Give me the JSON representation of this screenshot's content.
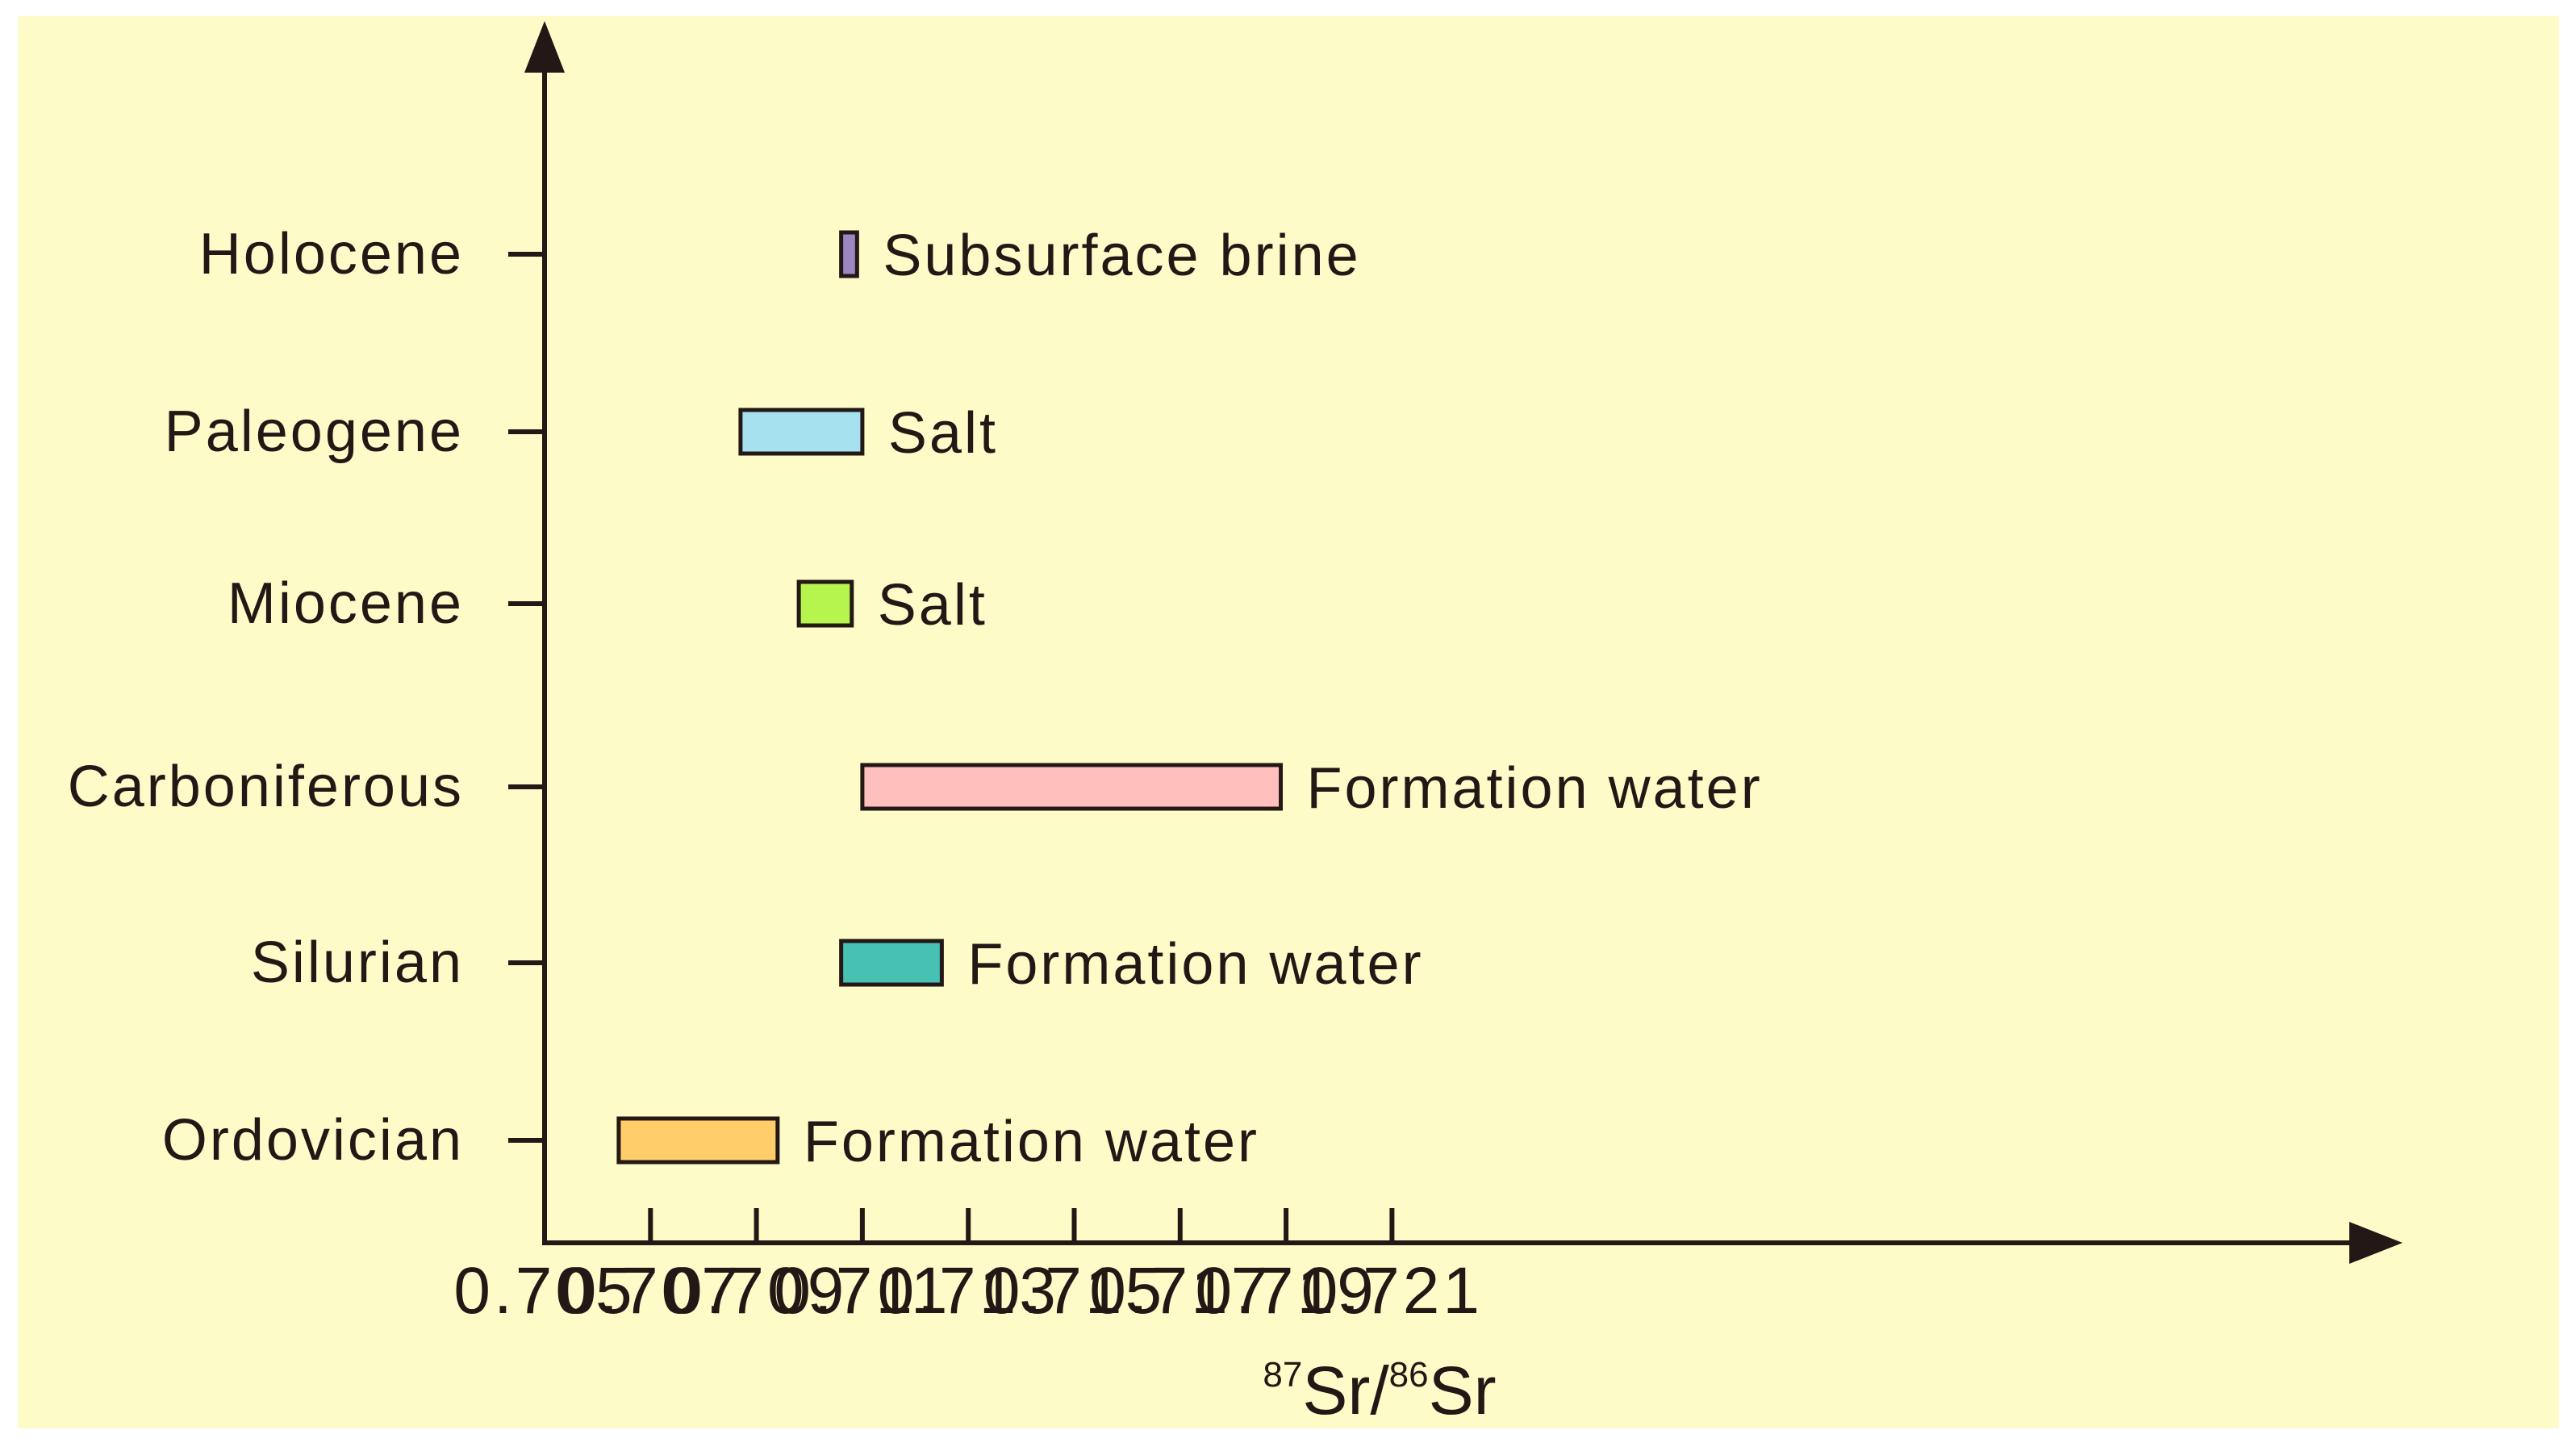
{
  "colors": {
    "background": "#fdfbc8",
    "axis": "#231815",
    "bar_stroke": "#231815"
  },
  "chart_data": {
    "type": "bar",
    "orientation": "horizontal-range",
    "title": "",
    "xlabel": {
      "prefix_sup": "87",
      "main1": "Sr/",
      "mid_sup": "86",
      "main2": "Sr"
    },
    "ylabel": "",
    "xlim": [
      0.705,
      0.7225
    ],
    "xticks": [
      "0.705",
      "0.707",
      "0.709",
      "0.711",
      "0.713",
      "0.715",
      "0.717",
      "0.719",
      "0.721"
    ],
    "categories": [
      "Holocene",
      "Paleogene",
      "Miocene",
      "Carboniferous",
      "Silurian",
      "Ordovician"
    ],
    "ranges": [
      {
        "category": "Holocene",
        "label": "Subsurface brine",
        "min": 0.7106,
        "max": 0.7109,
        "color": "#9d87c3"
      },
      {
        "category": "Paleogene",
        "label": "Salt",
        "min": 0.7087,
        "max": 0.711,
        "color": "#a6e1f0"
      },
      {
        "category": "Miocene",
        "label": "Salt",
        "min": 0.7098,
        "max": 0.7108,
        "color": "#b5f54e"
      },
      {
        "category": "Carboniferous",
        "label": "Formation water",
        "min": 0.711,
        "max": 0.7189,
        "color": "#ffc0bd"
      },
      {
        "category": "Silurian",
        "label": "Formation water",
        "min": 0.7106,
        "max": 0.7125,
        "color": "#47c1b2"
      },
      {
        "category": "Ordovician",
        "label": "Formation water",
        "min": 0.7064,
        "max": 0.7094,
        "color": "#ffce6b"
      }
    ],
    "grid": false,
    "legend": "none"
  }
}
